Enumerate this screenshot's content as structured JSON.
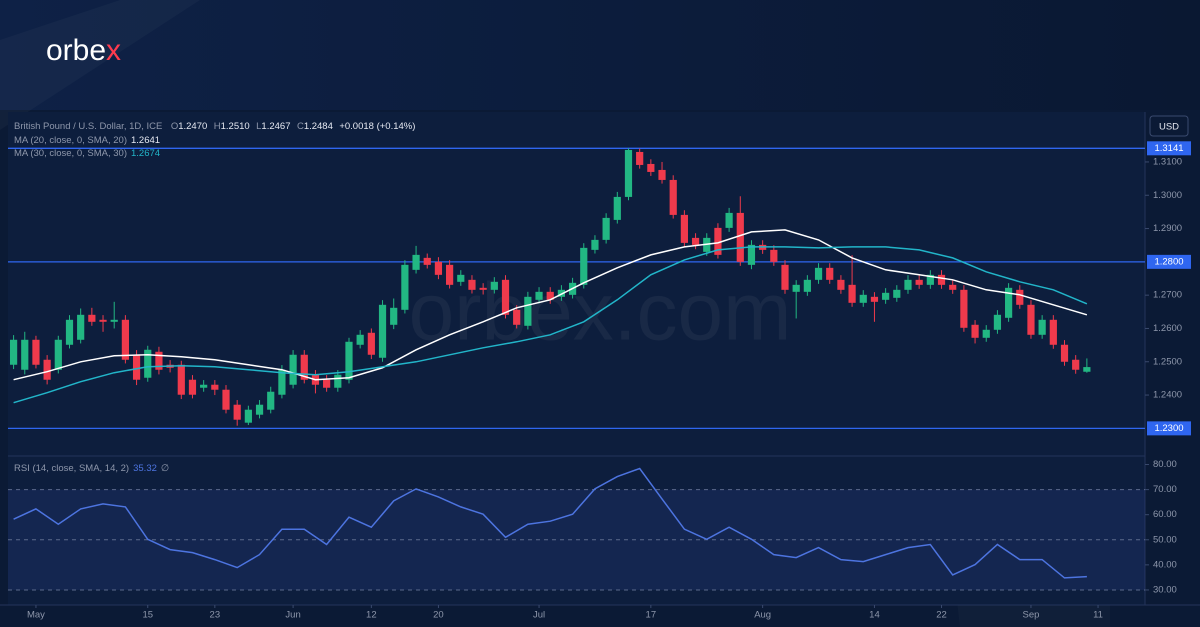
{
  "logo": [
    "orbe",
    "x"
  ],
  "watermark": "orbex.com",
  "currency_button": "USD",
  "chart_data": [
    {
      "type": "candlestick",
      "legend": {
        "symbol": "British Pound / U.S. Dollar, 1D, ICE",
        "ohlc": [
          {
            "key": "O",
            "value": "1.2470"
          },
          {
            "key": "H",
            "value": "1.2510"
          },
          {
            "key": "L",
            "value": "1.2467"
          },
          {
            "key": "C",
            "value": "1.2484"
          }
        ],
        "change": "+0.0018 (+0.14%)"
      },
      "up_color": "#22b783",
      "down_color": "#ef3a4c",
      "open": [
        1.2491,
        1.2476,
        1.2566,
        1.2506,
        1.2476,
        1.2551,
        1.2566,
        1.2641,
        1.2626,
        1.262,
        1.2626,
        1.2521,
        1.2452,
        1.253,
        1.2491,
        1.2491,
        1.2446,
        1.2422,
        1.2431,
        1.2416,
        1.2371,
        1.2317,
        1.2341,
        1.2356,
        1.2401,
        1.2431,
        1.2521,
        1.2461,
        1.2446,
        1.2422,
        1.2446,
        1.2551,
        1.2587,
        1.2512,
        1.2611,
        1.2656,
        1.2776,
        1.2812,
        1.28,
        1.2791,
        1.274,
        1.2746,
        1.2722,
        1.2716,
        1.2746,
        1.2656,
        1.2608,
        1.2686,
        1.271,
        1.2695,
        1.2701,
        1.2731,
        1.2836,
        1.2866,
        1.2926,
        1.2995,
        1.313,
        1.3094,
        1.3076,
        1.3046,
        1.2941,
        1.2872,
        1.283,
        1.2902,
        1.2902,
        1.2947,
        1.2791,
        1.2851,
        1.2836,
        1.2791,
        1.271,
        1.271,
        1.2746,
        1.2782,
        1.2746,
        1.2731,
        1.2677,
        1.2695,
        1.2686,
        1.2692,
        1.2716,
        1.2746,
        1.2731,
        1.2761,
        1.2731,
        1.2716,
        1.2611,
        1.2572,
        1.2596,
        1.2632,
        1.2716,
        1.2671,
        1.2581,
        1.2626,
        1.2551,
        1.2506,
        1.247
      ],
      "high": [
        1.258,
        1.259,
        1.2578,
        1.252,
        1.2578,
        1.264,
        1.266,
        1.2662,
        1.264,
        1.268,
        1.264,
        1.2535,
        1.2548,
        1.2545,
        1.2505,
        1.2503,
        1.246,
        1.2445,
        1.2445,
        1.243,
        1.2385,
        1.2368,
        1.2385,
        1.2425,
        1.249,
        1.2535,
        1.2535,
        1.2475,
        1.246,
        1.2475,
        1.2572,
        1.2595,
        1.26,
        1.2685,
        1.269,
        1.2805,
        1.2848,
        1.2825,
        1.2814,
        1.2805,
        1.2775,
        1.276,
        1.2736,
        1.2754,
        1.276,
        1.267,
        1.271,
        1.2724,
        1.2724,
        1.273,
        1.2752,
        1.2856,
        1.288,
        1.2946,
        1.301,
        1.3141,
        1.314,
        1.3108,
        1.31,
        1.306,
        1.2955,
        1.2886,
        1.2886,
        1.2916,
        1.2962,
        1.2997,
        1.2865,
        1.2865,
        1.285,
        1.2805,
        1.2745,
        1.276,
        1.2796,
        1.2796,
        1.276,
        1.282,
        1.2715,
        1.2709,
        1.2721,
        1.273,
        1.276,
        1.276,
        1.2775,
        1.2775,
        1.2745,
        1.273,
        1.2625,
        1.261,
        1.2655,
        1.2736,
        1.273,
        1.2685,
        1.264,
        1.264,
        1.2565,
        1.252,
        1.251
      ],
      "low": [
        1.2478,
        1.2462,
        1.248,
        1.2432,
        1.2465,
        1.254,
        1.2555,
        1.2608,
        1.259,
        1.26,
        1.2495,
        1.243,
        1.244,
        1.2462,
        1.2468,
        1.2388,
        1.239,
        1.241,
        1.24,
        1.2345,
        1.2308,
        1.231,
        1.233,
        1.2345,
        1.239,
        1.242,
        1.2435,
        1.2405,
        1.241,
        1.241,
        1.2435,
        1.254,
        1.2508,
        1.25,
        1.2598,
        1.2645,
        1.2765,
        1.278,
        1.2748,
        1.272,
        1.2728,
        1.2705,
        1.2702,
        1.2705,
        1.263,
        1.26,
        1.2597,
        1.2675,
        1.2674,
        1.2683,
        1.269,
        1.272,
        1.2825,
        1.2855,
        1.2915,
        1.2985,
        1.308,
        1.3058,
        1.3035,
        1.293,
        1.2845,
        1.2838,
        1.2818,
        1.281,
        1.289,
        1.2788,
        1.2778,
        1.2824,
        1.2788,
        1.2704,
        1.263,
        1.2698,
        1.2734,
        1.2734,
        1.2704,
        1.2665,
        1.2665,
        1.262,
        1.2674,
        1.268,
        1.2704,
        1.2719,
        1.2719,
        1.2719,
        1.2704,
        1.259,
        1.2555,
        1.256,
        1.2584,
        1.262,
        1.2659,
        1.2569,
        1.2569,
        1.2539,
        1.2488,
        1.2464,
        1.2467
      ],
      "close": [
        1.2566,
        1.2566,
        1.2491,
        1.2446,
        1.2566,
        1.2626,
        1.2641,
        1.262,
        1.262,
        1.2626,
        1.2506,
        1.2446,
        1.2536,
        1.2476,
        1.2482,
        1.2401,
        1.2401,
        1.2431,
        1.2416,
        1.2356,
        1.2326,
        1.2356,
        1.2371,
        1.241,
        1.2476,
        1.2521,
        1.2446,
        1.2431,
        1.2422,
        1.2461,
        1.256,
        1.2581,
        1.2521,
        1.2671,
        1.2662,
        1.2791,
        1.2821,
        1.2791,
        1.2761,
        1.2731,
        1.2761,
        1.2716,
        1.2716,
        1.274,
        1.2641,
        1.2611,
        1.2695,
        1.271,
        1.2686,
        1.2716,
        1.2737,
        1.2842,
        1.2866,
        1.2932,
        1.2995,
        1.3136,
        1.3091,
        1.307,
        1.3046,
        1.2941,
        1.2857,
        1.2851,
        1.2872,
        1.2821,
        1.2947,
        1.28,
        1.2851,
        1.2836,
        1.28,
        1.2716,
        1.2731,
        1.2746,
        1.2782,
        1.2746,
        1.2716,
        1.2677,
        1.2701,
        1.268,
        1.2707,
        1.2716,
        1.2746,
        1.2731,
        1.2761,
        1.2731,
        1.2716,
        1.2602,
        1.2572,
        1.2596,
        1.2641,
        1.2722,
        1.2671,
        1.2581,
        1.2626,
        1.2551,
        1.25,
        1.2476,
        1.2484
      ],
      "series": [
        {
          "name": "MA (20, close, 0, SMA, 20)",
          "color": "#ffffff",
          "last_label": "1.2641",
          "x": [
            0,
            3,
            6,
            9,
            12,
            15,
            18,
            21,
            24,
            27,
            30,
            33,
            36,
            39,
            42,
            45,
            48,
            51,
            54,
            57,
            60,
            63,
            66,
            69,
            72,
            75,
            78,
            81,
            84,
            87,
            90,
            93,
            96
          ],
          "values": [
            1.2446,
            1.247,
            1.25,
            1.2518,
            1.2521,
            1.2515,
            1.2506,
            1.2491,
            1.2476,
            1.2446,
            1.2452,
            1.2482,
            1.2536,
            1.2581,
            1.262,
            1.2662,
            1.2686,
            1.2737,
            1.2782,
            1.2821,
            1.2845,
            1.2857,
            1.289,
            1.2896,
            1.2866,
            1.2812,
            1.2776,
            1.2761,
            1.2746,
            1.2716,
            1.2701,
            1.2671,
            1.2641
          ]
        },
        {
          "name": "MA (30, close, 0, SMA, 30)",
          "color": "#22b5c9",
          "last_label": "1.2674",
          "x": [
            0,
            3,
            6,
            9,
            12,
            15,
            18,
            21,
            24,
            27,
            30,
            33,
            36,
            39,
            42,
            45,
            48,
            51,
            54,
            57,
            60,
            63,
            66,
            69,
            72,
            75,
            78,
            81,
            84,
            87,
            90,
            93,
            96
          ],
          "values": [
            1.2377,
            1.2407,
            1.244,
            1.2467,
            1.2485,
            1.2488,
            1.2485,
            1.2476,
            1.2467,
            1.2461,
            1.247,
            1.2485,
            1.25,
            1.2521,
            1.2542,
            1.256,
            1.2581,
            1.262,
            1.2686,
            1.2761,
            1.2806,
            1.2836,
            1.2845,
            1.2845,
            1.2842,
            1.2845,
            1.2845,
            1.2836,
            1.2812,
            1.277,
            1.274,
            1.2716,
            1.2674
          ]
        }
      ],
      "levels": [
        {
          "value": 1.3141,
          "label": "1.3141"
        },
        {
          "value": 1.28,
          "label": "1.2800"
        },
        {
          "value": 1.23,
          "label": "1.2300"
        }
      ],
      "level_color": "#2f66f0",
      "xlim": [
        -0.5,
        101.2
      ],
      "ylim": [
        1.222,
        1.325
      ],
      "yticks": [
        {
          "value": 1.31,
          "label": "1.3100"
        },
        {
          "value": 1.3,
          "label": "1.3000"
        },
        {
          "value": 1.29,
          "label": "1.2900"
        },
        {
          "value": 1.27,
          "label": "1.2700"
        },
        {
          "value": 1.26,
          "label": "1.2600"
        },
        {
          "value": 1.25,
          "label": "1.2500"
        },
        {
          "value": 1.24,
          "label": "1.2400"
        }
      ]
    },
    {
      "type": "line",
      "legend_suffix": "∅",
      "series": [
        {
          "name": "RSI (14, close, SMA, 14, 2)",
          "color": "#4d74e0",
          "last_label": "35.32",
          "x": [
            0,
            2,
            4,
            6,
            8,
            10,
            12,
            14,
            16,
            18,
            20,
            22,
            24,
            26,
            28,
            30,
            32,
            34,
            36,
            38,
            40,
            42,
            44,
            46,
            48,
            50,
            52,
            54,
            56,
            58,
            60,
            62,
            64,
            66,
            68,
            70,
            72,
            74,
            76,
            78,
            80,
            82,
            84,
            86,
            88,
            90,
            92,
            94,
            96
          ],
          "values": [
            58.2,
            62.3,
            56.2,
            62.3,
            64.3,
            63.1,
            50.2,
            46.1,
            44.9,
            42.1,
            38.9,
            44.1,
            54.2,
            54.2,
            48.1,
            59.0,
            55.0,
            65.5,
            70.3,
            67.1,
            63.1,
            60.2,
            51.0,
            56.2,
            57.4,
            60.2,
            70.3,
            75.2,
            78.4,
            66.3,
            54.2,
            50.2,
            55.0,
            50.2,
            44.1,
            42.9,
            46.9,
            42.1,
            41.3,
            44.1,
            46.9,
            48.1,
            36.0,
            40.1,
            48.1,
            42.1,
            42.1,
            34.8,
            35.32
          ]
        }
      ],
      "guides": [
        70,
        50,
        30
      ],
      "xlim": [
        -0.5,
        101.2
      ],
      "ylim": [
        24,
        83
      ],
      "yticks": [
        {
          "value": 80,
          "label": "80.00"
        },
        {
          "value": 70,
          "label": "70.00"
        },
        {
          "value": 60,
          "label": "60.00"
        },
        {
          "value": 50,
          "label": "50.00"
        },
        {
          "value": 40,
          "label": "40.00"
        },
        {
          "value": 30,
          "label": "30.00"
        }
      ],
      "xticks": [
        {
          "value": 2,
          "label": "May"
        },
        {
          "value": 12,
          "label": "15"
        },
        {
          "value": 18,
          "label": "23"
        },
        {
          "value": 25,
          "label": "Jun"
        },
        {
          "value": 32,
          "label": "12"
        },
        {
          "value": 38,
          "label": "20"
        },
        {
          "value": 47,
          "label": "Jul"
        },
        {
          "value": 57,
          "label": "17"
        },
        {
          "value": 67,
          "label": "Aug"
        },
        {
          "value": 77,
          "label": "14"
        },
        {
          "value": 83,
          "label": "22"
        },
        {
          "value": 91,
          "label": "Sep"
        },
        {
          "value": 97,
          "label": "11"
        }
      ]
    }
  ]
}
